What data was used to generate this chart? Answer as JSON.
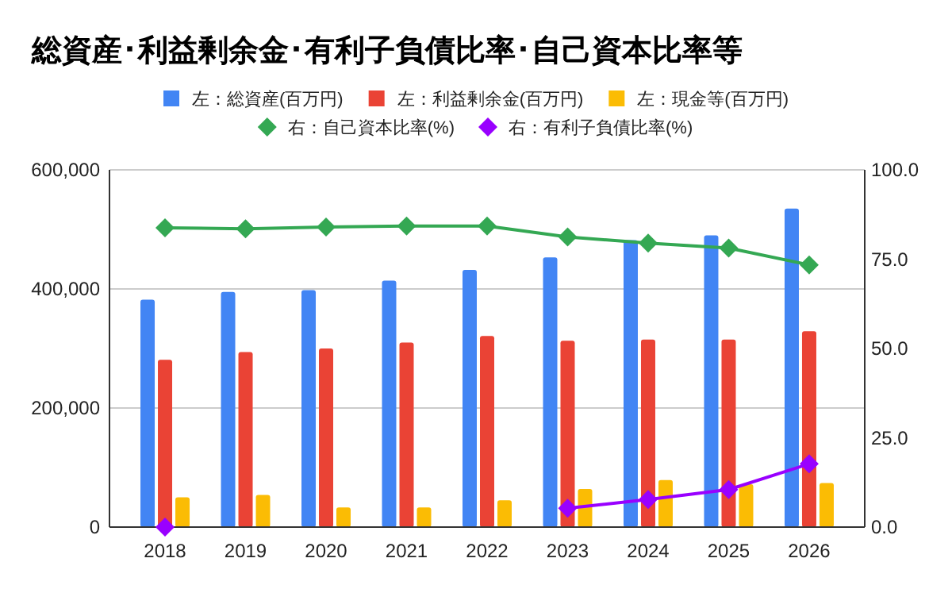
{
  "chart_data": {
    "type": "bar",
    "title": "総資産･利益剰余金･有利子負債比率･自己資本比率等",
    "categories": [
      "2018",
      "2019",
      "2020",
      "2021",
      "2022",
      "2023",
      "2024",
      "2025",
      "2026"
    ],
    "series": [
      {
        "name": "左：総資産(百万円)",
        "color": "#4285f4",
        "values": [
          382000,
          395000,
          398000,
          414000,
          432000,
          453000,
          482000,
          490000,
          535000
        ]
      },
      {
        "name": "左：利益剰余金(百万円)",
        "color": "#ea4335",
        "values": [
          281000,
          294000,
          300000,
          310000,
          321000,
          313000,
          315000,
          315000,
          329000
        ]
      },
      {
        "name": "左：現金等(百万円)",
        "color": "#fbbc04",
        "values": [
          50000,
          54000,
          33000,
          33000,
          45000,
          64000,
          79000,
          72000,
          74000
        ]
      },
      {
        "name": "右：自己資本比率(%)",
        "color": "#34a853",
        "type": "line",
        "axis": "y2",
        "marker": "diamond",
        "values": [
          83.8,
          83.5,
          84.0,
          84.3,
          84.3,
          81.2,
          79.5,
          78.1,
          73.4
        ]
      },
      {
        "name": "右：有利子負債比率(%)",
        "color": "#9900ff",
        "type": "line",
        "axis": "y2",
        "marker": "diamond",
        "values": [
          0,
          null,
          null,
          null,
          null,
          5.3,
          7.7,
          10.5,
          17.7
        ]
      }
    ],
    "ylim": [
      0,
      600000
    ],
    "yticks": [
      {
        "value": 0,
        "label": "0"
      },
      {
        "value": 200000,
        "label": "200,000"
      },
      {
        "value": 400000,
        "label": "400,000"
      },
      {
        "value": 600000,
        "label": "600,000"
      }
    ],
    "y2lim": [
      0,
      100
    ],
    "y2ticks": [
      {
        "value": 0,
        "label": "0.0"
      },
      {
        "value": 25,
        "label": "25.0"
      },
      {
        "value": 50,
        "label": "50.0"
      },
      {
        "value": 75,
        "label": "75.0"
      },
      {
        "value": 100,
        "label": "100.0"
      }
    ],
    "grid": "y",
    "legend": "top"
  }
}
